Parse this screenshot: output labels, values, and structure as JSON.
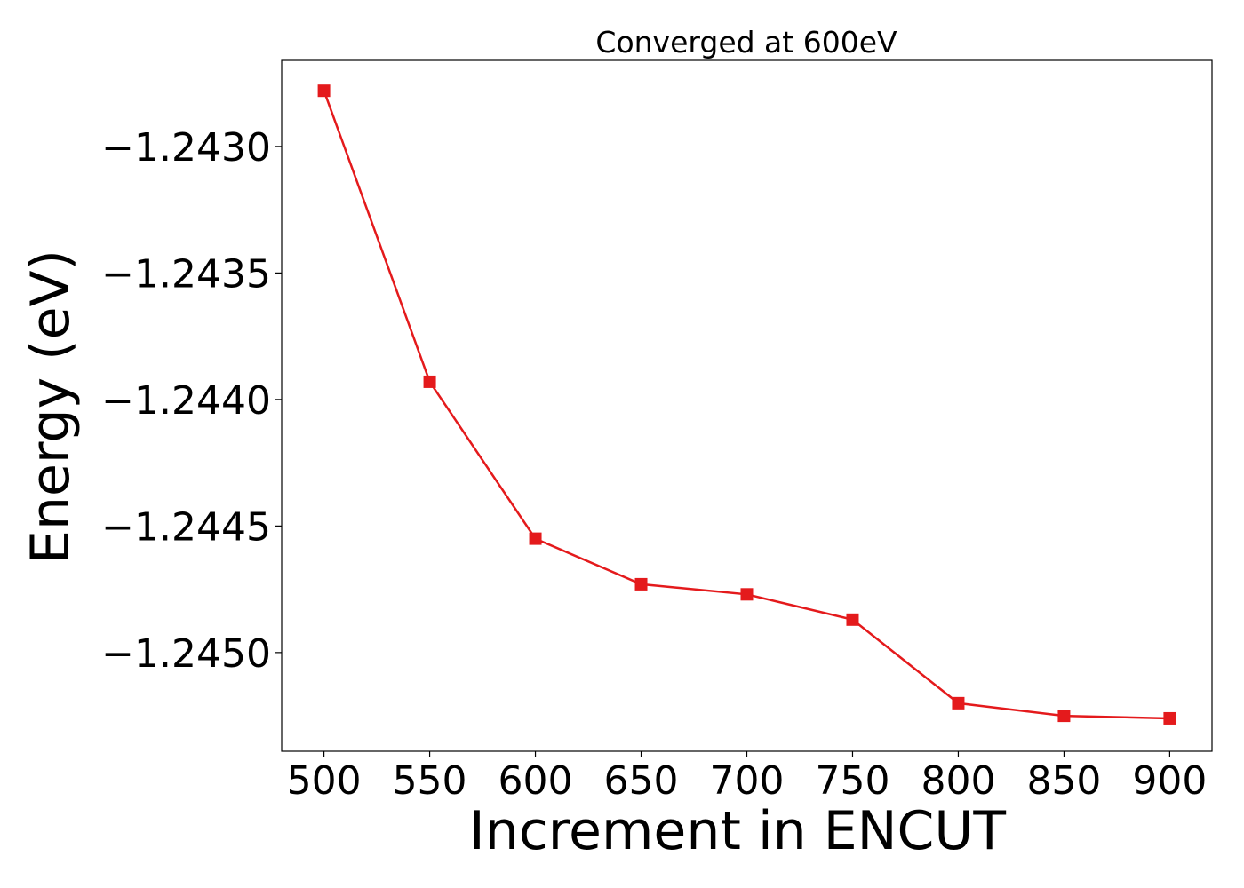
{
  "chart_data": {
    "type": "line",
    "title": "Converged at 600eV",
    "xlabel": "Increment in ENCUT",
    "ylabel": "Energy (eV)",
    "x": [
      500,
      550,
      600,
      650,
      700,
      750,
      800,
      850,
      900
    ],
    "series": [
      {
        "values": [
          -1.24278,
          -1.24393,
          -1.24455,
          -1.24473,
          -1.24477,
          -1.24487,
          -1.2452,
          -1.24525,
          -1.24526
        ],
        "color": "#e41a1c",
        "marker": "square"
      }
    ],
    "xticks": [
      500,
      550,
      600,
      650,
      700,
      750,
      800,
      850,
      900
    ],
    "xtick_labels": [
      "500",
      "550",
      "600",
      "650",
      "700",
      "750",
      "800",
      "850",
      "900"
    ],
    "yticks": [
      -1.243,
      -1.2435,
      -1.244,
      -1.2445,
      -1.245
    ],
    "ytick_labels": [
      "−1.2430",
      "−1.2435",
      "−1.2440",
      "−1.2445",
      "−1.2450"
    ],
    "xlim": [
      480,
      920
    ],
    "ylim": [
      -1.24539,
      -1.24266
    ],
    "grid": false,
    "legend": "none"
  }
}
